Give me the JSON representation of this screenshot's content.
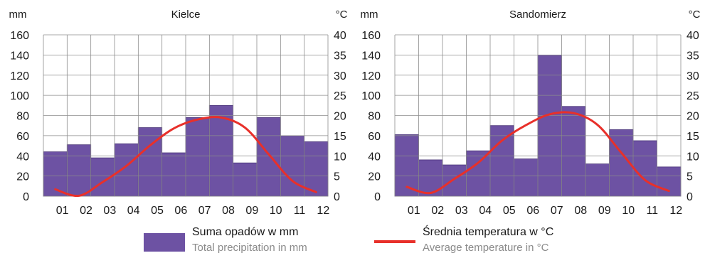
{
  "chart_data": [
    {
      "type": "bar",
      "title": "Kielce",
      "ylabel_left": "mm",
      "ylabel_right": "°C",
      "categories": [
        "01",
        "02",
        "03",
        "04",
        "05",
        "06",
        "07",
        "08",
        "09",
        "10",
        "11",
        "12"
      ],
      "series": [
        {
          "axis": "left",
          "kind": "bar",
          "values": [
            44,
            51,
            38,
            52,
            68,
            43,
            78,
            90,
            33,
            78,
            60,
            54
          ]
        },
        {
          "axis": "right",
          "kind": "line",
          "values": [
            1.7,
            0.1,
            3.5,
            7.5,
            12.6,
            16.8,
            19.0,
            19.5,
            17.0,
            10.4,
            3.8,
            1.0
          ]
        }
      ],
      "ylim_left": [
        0,
        160
      ],
      "ylim_right": [
        0,
        40
      ],
      "yticks_left": [
        0,
        20,
        40,
        60,
        80,
        100,
        120,
        140,
        160
      ],
      "yticks_right": [
        0,
        5,
        10,
        15,
        20,
        25,
        30,
        35,
        40
      ],
      "grid": true
    },
    {
      "type": "bar",
      "title": "Sandomierz",
      "ylabel_left": "mm",
      "ylabel_right": "°C",
      "categories": [
        "01",
        "02",
        "03",
        "04",
        "05",
        "06",
        "07",
        "08",
        "09",
        "10",
        "11",
        "12"
      ],
      "series": [
        {
          "axis": "left",
          "kind": "bar",
          "values": [
            61,
            36,
            31,
            45,
            70,
            37,
            140,
            89,
            32,
            66,
            55,
            29
          ]
        },
        {
          "axis": "right",
          "kind": "line",
          "values": [
            2.3,
            0.8,
            4.3,
            8.3,
            13.8,
            17.6,
            20.3,
            20.6,
            17.7,
            10.8,
            4.0,
            1.3
          ]
        }
      ],
      "ylim_left": [
        0,
        160
      ],
      "ylim_right": [
        0,
        40
      ],
      "yticks_left": [
        0,
        20,
        40,
        60,
        80,
        100,
        120,
        140,
        160
      ],
      "yticks_right": [
        0,
        5,
        10,
        15,
        20,
        25,
        30,
        35,
        40
      ],
      "grid": true
    }
  ],
  "legend": {
    "precip_label": "Suma opadów w mm",
    "precip_sub": "Total precipitation in mm",
    "temp_label": "Średnia temperatura w °C",
    "temp_sub": "Average temperature in °C"
  },
  "colors": {
    "bar": "#6d52a3",
    "bar_edge": "#4a3578",
    "line": "#e8302a",
    "grid": "#8c8c8c"
  }
}
